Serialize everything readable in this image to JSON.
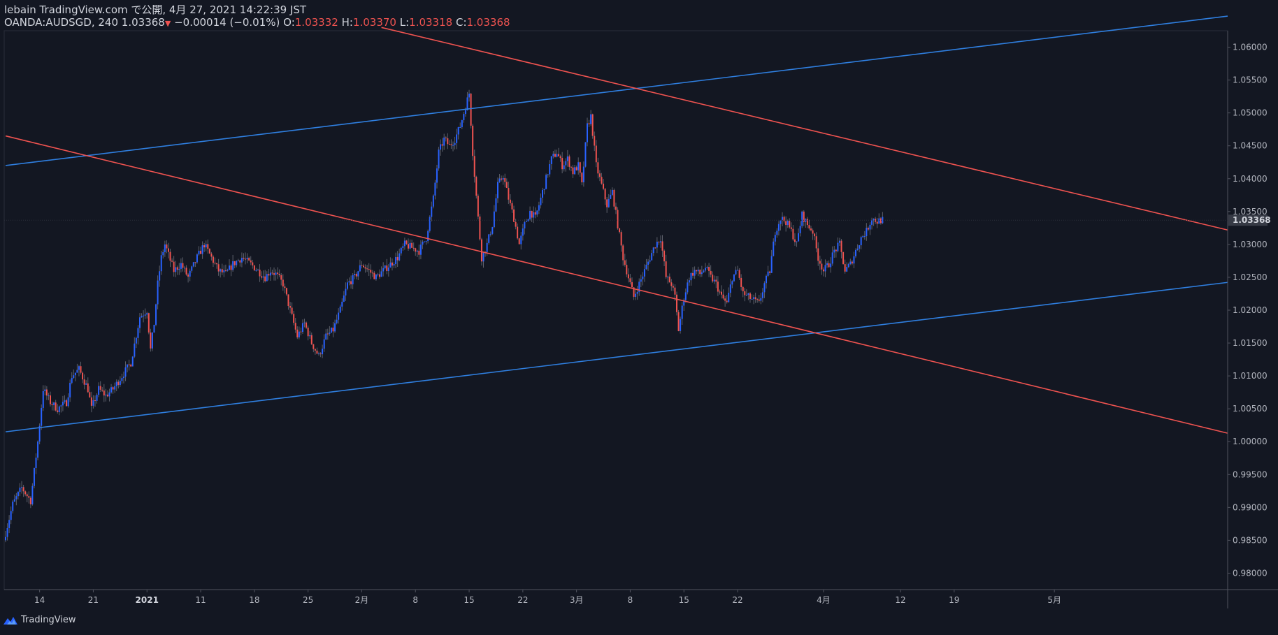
{
  "header": {
    "publish_line": "lebain TradingView.com で公開, 4月 27, 2021 14:22:39 JST",
    "symbol": "OANDA:AUDSGD, 240",
    "last": "1.03368",
    "change_arrow": "▼",
    "change": "−0.00014 (−0.01%)",
    "o_label": "O:",
    "o_value": "1.03332",
    "h_label": "H:",
    "h_value": "1.03370",
    "l_label": "L:",
    "l_value": "1.03318",
    "c_label": "C:",
    "c_value": "1.03368"
  },
  "footer": {
    "brand": "TradingView",
    "logo_icon": "tradingview-logo-icon"
  },
  "colors": {
    "background": "#131722",
    "up": "#2962ff",
    "down": "#ef5350",
    "trendline_blue": "#2f7fe0",
    "trendline_red": "#ef5350",
    "axis": "#b2b5be",
    "price_tag_bg": "#363a45"
  },
  "chart_data": {
    "type": "candlestick",
    "symbol": "OANDA:AUDSGD",
    "interval": "240",
    "ylim": [
      0.9775,
      1.0625
    ],
    "y_ticks": [
      "1.06000",
      "1.05500",
      "1.05000",
      "1.04500",
      "1.04000",
      "1.03500",
      "1.03000",
      "1.02500",
      "1.02000",
      "1.01500",
      "1.01000",
      "1.00500",
      "1.00000",
      "0.99500",
      "0.99000",
      "0.98500",
      "0.98000"
    ],
    "x_ticks": [
      {
        "label": "14",
        "bar": 19,
        "bold": false
      },
      {
        "label": "21",
        "bar": 49,
        "bold": false
      },
      {
        "label": "2021",
        "bar": 79,
        "bold": true
      },
      {
        "label": "11",
        "bar": 109,
        "bold": false
      },
      {
        "label": "18",
        "bar": 139,
        "bold": false
      },
      {
        "label": "25",
        "bar": 169,
        "bold": false
      },
      {
        "label": "2月",
        "bar": 199,
        "bold": false
      },
      {
        "label": "8",
        "bar": 229,
        "bold": false
      },
      {
        "label": "15",
        "bar": 259,
        "bold": false
      },
      {
        "label": "22",
        "bar": 289,
        "bold": false
      },
      {
        "label": "3月",
        "bar": 319,
        "bold": false
      },
      {
        "label": "8",
        "bar": 349,
        "bold": false
      },
      {
        "label": "15",
        "bar": 379,
        "bold": false
      },
      {
        "label": "22",
        "bar": 409,
        "bold": false
      },
      {
        "label": "4月",
        "bar": 457,
        "bold": false
      },
      {
        "label": "12",
        "bar": 500,
        "bold": false
      },
      {
        "label": "19",
        "bar": 530,
        "bold": false
      },
      {
        "label": "5月",
        "bar": 586,
        "bold": false
      }
    ],
    "current_price": 1.03368,
    "current_price_label": "1.03368",
    "price_path": [
      [
        0,
        0.985
      ],
      [
        5,
        0.9905
      ],
      [
        10,
        0.993
      ],
      [
        15,
        0.991
      ],
      [
        19,
        1.0
      ],
      [
        22,
        1.008
      ],
      [
        26,
        1.006
      ],
      [
        30,
        1.005
      ],
      [
        35,
        1.006
      ],
      [
        38,
        1.01
      ],
      [
        42,
        1.011
      ],
      [
        47,
        1.008
      ],
      [
        49,
        1.005
      ],
      [
        53,
        1.008
      ],
      [
        57,
        1.007
      ],
      [
        61,
        1.008
      ],
      [
        66,
        1.01
      ],
      [
        71,
        1.012
      ],
      [
        76,
        1.019
      ],
      [
        80,
        1.02
      ],
      [
        82,
        1.014
      ],
      [
        84,
        1.018
      ],
      [
        86,
        1.024
      ],
      [
        88,
        1.028
      ],
      [
        90,
        1.03
      ],
      [
        95,
        1.026
      ],
      [
        99,
        1.027
      ],
      [
        103,
        1.025
      ],
      [
        108,
        1.028
      ],
      [
        112,
        1.03
      ],
      [
        116,
        1.028
      ],
      [
        120,
        1.026
      ],
      [
        124,
        1.0255
      ],
      [
        128,
        1.027
      ],
      [
        133,
        1.028
      ],
      [
        138,
        1.027
      ],
      [
        142,
        1.026
      ],
      [
        146,
        1.025
      ],
      [
        149,
        1.026
      ],
      [
        152,
        1.0255
      ],
      [
        156,
        1.024
      ],
      [
        160,
        1.02
      ],
      [
        164,
        1.016
      ],
      [
        168,
        1.018
      ],
      [
        172,
        1.015
      ],
      [
        176,
        1.013
      ],
      [
        180,
        1.016
      ],
      [
        184,
        1.017
      ],
      [
        188,
        1.02
      ],
      [
        192,
        1.024
      ],
      [
        196,
        1.025
      ],
      [
        200,
        1.027
      ],
      [
        204,
        1.026
      ],
      [
        208,
        1.025
      ],
      [
        212,
        1.026
      ],
      [
        216,
        1.027
      ],
      [
        220,
        1.028
      ],
      [
        224,
        1.03
      ],
      [
        228,
        1.0295
      ],
      [
        232,
        1.029
      ],
      [
        236,
        1.031
      ],
      [
        240,
        1.037
      ],
      [
        243,
        1.044
      ],
      [
        246,
        1.046
      ],
      [
        249,
        1.045
      ],
      [
        252,
        1.046
      ],
      [
        255,
        1.048
      ],
      [
        258,
        1.051
      ],
      [
        260,
        1.053
      ],
      [
        262,
        1.044
      ],
      [
        265,
        1.034
      ],
      [
        267,
        1.028
      ],
      [
        270,
        1.03
      ],
      [
        273,
        1.033
      ],
      [
        276,
        1.039
      ],
      [
        279,
        1.0405
      ],
      [
        282,
        1.037
      ],
      [
        285,
        1.034
      ],
      [
        288,
        1.03
      ],
      [
        291,
        1.033
      ],
      [
        294,
        1.035
      ],
      [
        297,
        1.034
      ],
      [
        300,
        1.037
      ],
      [
        303,
        1.04
      ],
      [
        306,
        1.043
      ],
      [
        309,
        1.044
      ],
      [
        312,
        1.042
      ],
      [
        315,
        1.043
      ],
      [
        318,
        1.041
      ],
      [
        321,
        1.042
      ],
      [
        323,
        1.039
      ],
      [
        326,
        1.048
      ],
      [
        328,
        1.0495
      ],
      [
        331,
        1.042
      ],
      [
        334,
        1.039
      ],
      [
        337,
        1.036
      ],
      [
        340,
        1.038
      ],
      [
        343,
        1.033
      ],
      [
        346,
        1.028
      ],
      [
        349,
        1.025
      ],
      [
        352,
        1.022
      ],
      [
        355,
        1.024
      ],
      [
        358,
        1.026
      ],
      [
        361,
        1.028
      ],
      [
        364,
        1.03
      ],
      [
        367,
        1.031
      ],
      [
        370,
        1.025
      ],
      [
        373,
        1.024
      ],
      [
        375,
        1.022
      ],
      [
        377,
        1.017
      ],
      [
        380,
        1.022
      ],
      [
        383,
        1.025
      ],
      [
        386,
        1.026
      ],
      [
        389,
        1.0255
      ],
      [
        392,
        1.0265
      ],
      [
        395,
        1.025
      ],
      [
        398,
        1.024
      ],
      [
        401,
        1.022
      ],
      [
        404,
        1.021
      ],
      [
        407,
        1.025
      ],
      [
        410,
        1.026
      ],
      [
        413,
        1.0225
      ],
      [
        416,
        1.022
      ],
      [
        419,
        1.0215
      ],
      [
        422,
        1.021
      ],
      [
        425,
        1.024
      ],
      [
        428,
        1.026
      ],
      [
        431,
        1.032
      ],
      [
        434,
        1.034
      ],
      [
        437,
        1.0335
      ],
      [
        440,
        1.032
      ],
      [
        443,
        1.03
      ],
      [
        446,
        1.0345
      ],
      [
        449,
        1.033
      ],
      [
        452,
        1.032
      ],
      [
        455,
        1.028
      ],
      [
        458,
        1.026
      ],
      [
        461,
        1.027
      ],
      [
        464,
        1.029
      ],
      [
        467,
        1.03
      ],
      [
        470,
        1.026
      ],
      [
        473,
        1.027
      ],
      [
        476,
        1.029
      ],
      [
        479,
        1.031
      ],
      [
        482,
        1.032
      ],
      [
        485,
        1.034
      ],
      [
        488,
        1.0335
      ],
      [
        490,
        1.0337
      ]
    ],
    "trendlines": [
      {
        "name": "upper-blue-channel",
        "color": "#2f7fe0",
        "p1": [
          0,
          1.042
        ],
        "p2": [
          586,
          1.0615
        ]
      },
      {
        "name": "lower-blue-channel",
        "color": "#2f7fe0",
        "p1": [
          0,
          1.0015
        ],
        "p2": [
          586,
          1.021
        ]
      },
      {
        "name": "upper-red-downtrend",
        "color": "#ef5350",
        "p1": [
          210,
          1.063
        ],
        "p2": [
          586,
          1.0385
        ]
      },
      {
        "name": "lower-red-downtrend",
        "color": "#ef5350",
        "p1": [
          0,
          1.0465
        ],
        "p2": [
          586,
          1.0077
        ]
      }
    ]
  }
}
